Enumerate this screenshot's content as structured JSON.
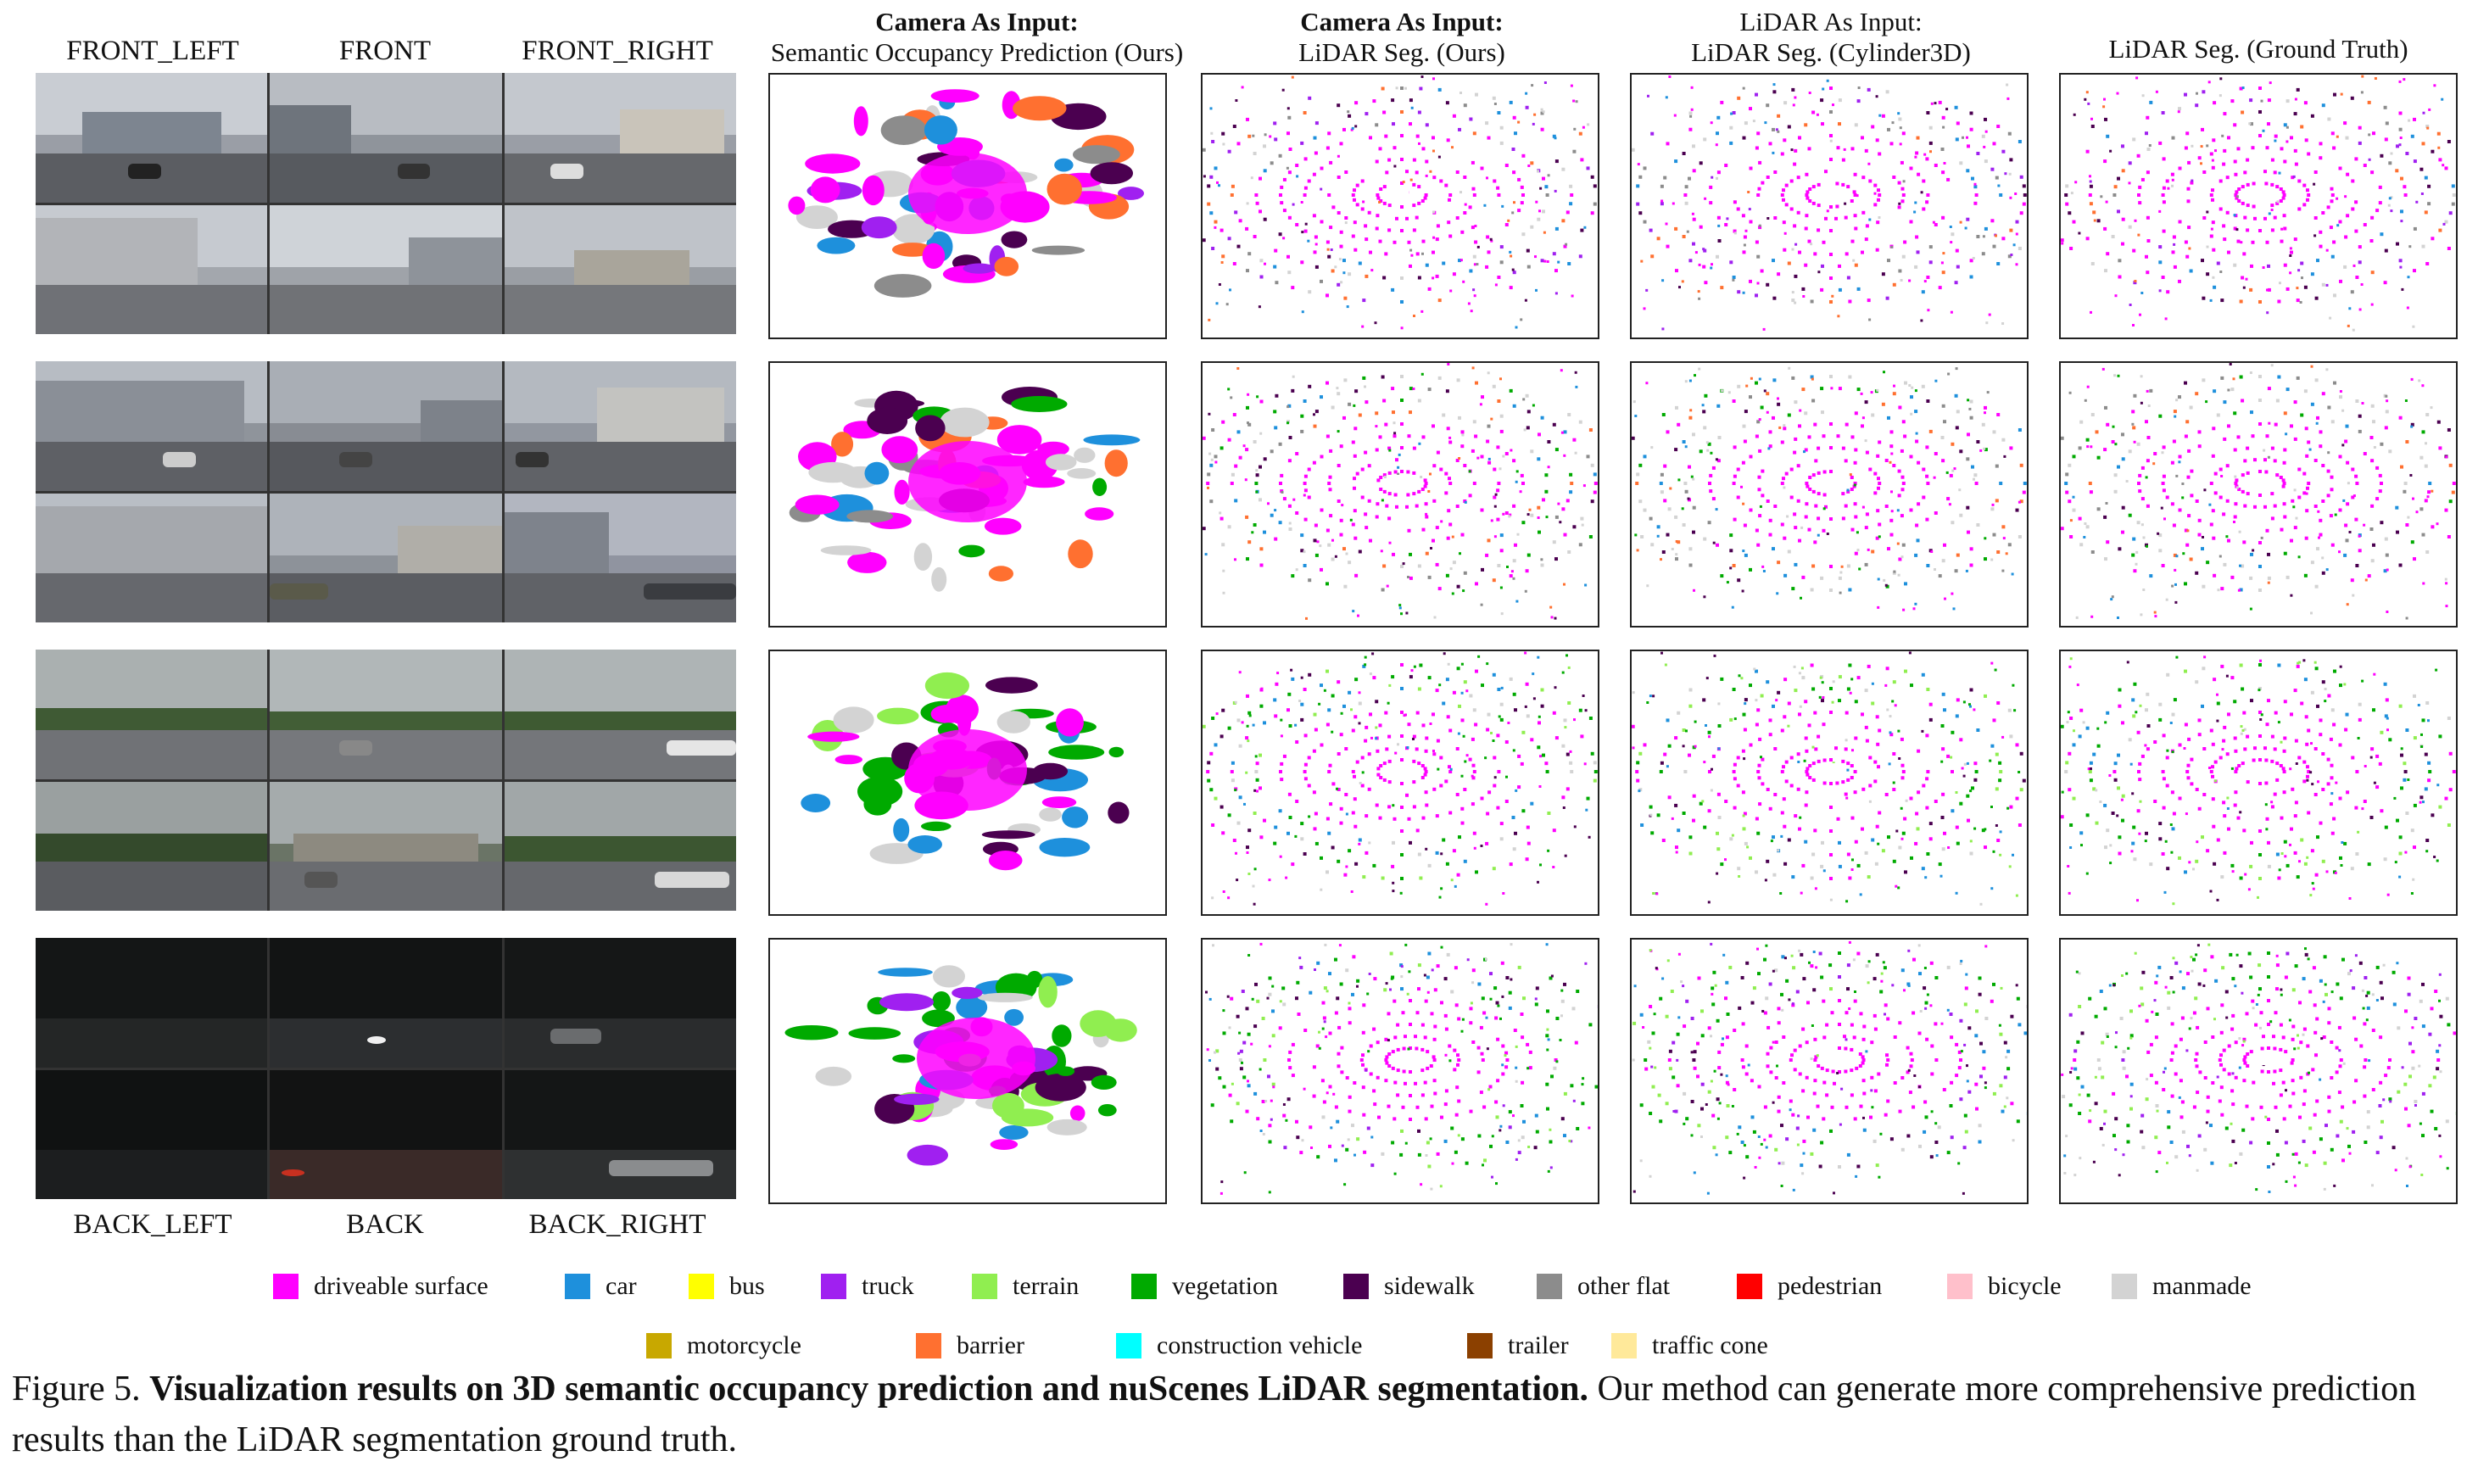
{
  "camera_labels_top": [
    "FRONT_LEFT",
    "FRONT",
    "FRONT_RIGHT"
  ],
  "camera_labels_bottom": [
    "BACK_LEFT",
    "BACK",
    "BACK_RIGHT"
  ],
  "column_headers": [
    {
      "line1": "Camera As Input:",
      "line2": "Semantic Occupancy Prediction (Ours)",
      "bold_line1": true
    },
    {
      "line1": "Camera As Input:",
      "line2": "LiDAR Seg. (Ours)",
      "bold_line1": true
    },
    {
      "line1": "LiDAR As Input:",
      "line2": "LiDAR Seg. (Cylinder3D)",
      "bold_line1": false
    },
    {
      "line1": "LiDAR Seg. (Ground Truth)",
      "line2": "",
      "bold_line1": false
    }
  ],
  "legend_row1": [
    {
      "label": "driveable surface",
      "color": "#ff00ff"
    },
    {
      "label": "car",
      "color": "#1e90dc"
    },
    {
      "label": "bus",
      "color": "#ffff00"
    },
    {
      "label": "truck",
      "color": "#a020f0"
    },
    {
      "label": "terrain",
      "color": "#90ee50"
    },
    {
      "label": "vegetation",
      "color": "#00aa00"
    },
    {
      "label": "sidewalk",
      "color": "#4b0050"
    },
    {
      "label": "other flat",
      "color": "#8c8c8c"
    },
    {
      "label": "pedestrian",
      "color": "#ff0000"
    },
    {
      "label": "bicycle",
      "color": "#ffc0cb"
    },
    {
      "label": "manmade",
      "color": "#d3d3d3"
    }
  ],
  "legend_row2": [
    {
      "label": "motorcycle",
      "color": "#c8a800"
    },
    {
      "label": "barrier",
      "color": "#ff7030"
    },
    {
      "label": "construction vehicle",
      "color": "#00ffff"
    },
    {
      "label": "trailer",
      "color": "#8b4000"
    },
    {
      "label": "traffic cone",
      "color": "#ffe99a"
    }
  ],
  "caption": {
    "prefix": "Figure 5.",
    "bold": "Visualization results on 3D semantic occupancy prediction and nuScenes LiDAR segmentation.",
    "rest": "Our method can generate more comprehensive prediction results than the LiDAR segmentation ground truth."
  }
}
